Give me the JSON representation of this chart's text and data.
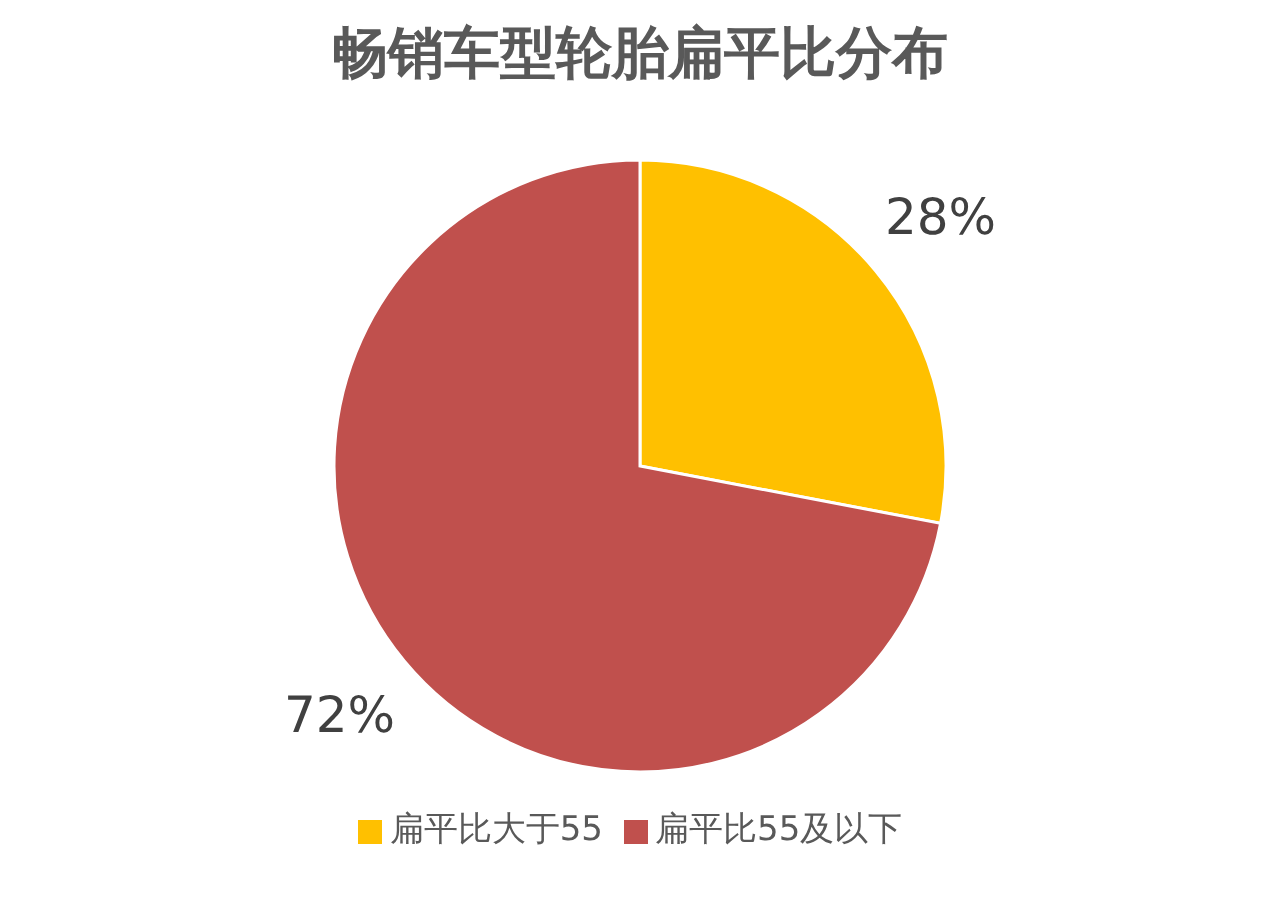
{
  "chart_data": {
    "type": "pie",
    "title": "畅销车型轮胎扁平比分布",
    "categories": [
      "扁平比大于55",
      "扁平比55及以下"
    ],
    "values": [
      28,
      72
    ],
    "colors": [
      "#ffc000",
      "#c0504d"
    ],
    "value_labels": [
      "28%",
      "72%"
    ],
    "legend": "bottom"
  }
}
